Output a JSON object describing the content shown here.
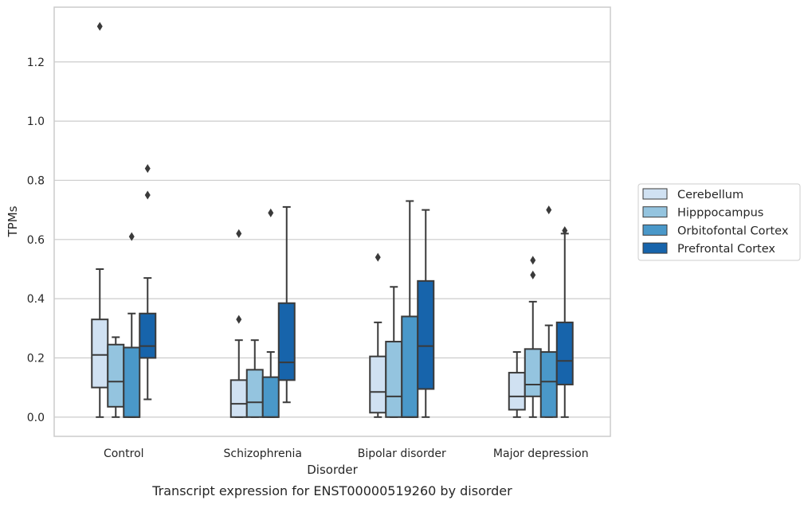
{
  "chart_data": {
    "type": "boxplot",
    "caption": "Transcript expression for ENST00000519260 by disorder",
    "xlabel": "Disorder",
    "ylabel": "TPMs",
    "ylim": [
      -0.065,
      1.385
    ],
    "yticks": [
      0.0,
      0.2,
      0.4,
      0.6,
      0.8,
      1.0,
      1.2
    ],
    "ytick_labels": [
      "0.0",
      "0.2",
      "0.4",
      "0.6",
      "0.8",
      "1.0",
      "1.2"
    ],
    "grid": "horizontal",
    "legend_position": "right",
    "categories": [
      "Control",
      "Schizophrenia",
      "Bipolar disorder",
      "Major depression"
    ],
    "series": [
      {
        "name": "Cerebellum",
        "color": "#d0e1f2",
        "boxes": [
          {
            "whislo": 0.0,
            "q1": 0.1,
            "med": 0.21,
            "q3": 0.33,
            "whishi": 0.5,
            "fliers": [
              1.32
            ]
          },
          {
            "whislo": 0.0,
            "q1": 0.0,
            "med": 0.045,
            "q3": 0.125,
            "whishi": 0.26,
            "fliers": [
              0.33,
              0.62
            ]
          },
          {
            "whislo": 0.0,
            "q1": 0.015,
            "med": 0.085,
            "q3": 0.205,
            "whishi": 0.32,
            "fliers": [
              0.54
            ]
          },
          {
            "whislo": 0.0,
            "q1": 0.025,
            "med": 0.07,
            "q3": 0.15,
            "whishi": 0.22,
            "fliers": []
          }
        ]
      },
      {
        "name": "Hipppocampus",
        "color": "#94c4df",
        "boxes": [
          {
            "whislo": 0.0,
            "q1": 0.035,
            "med": 0.12,
            "q3": 0.245,
            "whishi": 0.27,
            "fliers": []
          },
          {
            "whislo": 0.0,
            "q1": 0.0,
            "med": 0.05,
            "q3": 0.16,
            "whishi": 0.26,
            "fliers": []
          },
          {
            "whislo": 0.0,
            "q1": 0.0,
            "med": 0.07,
            "q3": 0.255,
            "whishi": 0.44,
            "fliers": []
          },
          {
            "whislo": 0.0,
            "q1": 0.07,
            "med": 0.11,
            "q3": 0.23,
            "whishi": 0.39,
            "fliers": [
              0.48,
              0.53
            ]
          }
        ]
      },
      {
        "name": "Orbitofontal Cortex",
        "color": "#4a98c9",
        "boxes": [
          {
            "whislo": 0.0,
            "q1": 0.0,
            "med": 0.0,
            "q3": 0.235,
            "whishi": 0.35,
            "fliers": [
              0.61
            ]
          },
          {
            "whislo": 0.0,
            "q1": 0.0,
            "med": 0.0,
            "q3": 0.135,
            "whishi": 0.22,
            "fliers": [
              0.69
            ]
          },
          {
            "whislo": 0.0,
            "q1": 0.0,
            "med": 0.0,
            "q3": 0.34,
            "whishi": 0.73,
            "fliers": []
          },
          {
            "whislo": 0.0,
            "q1": 0.0,
            "med": 0.12,
            "q3": 0.22,
            "whishi": 0.31,
            "fliers": [
              0.7
            ]
          }
        ]
      },
      {
        "name": "Prefrontal Cortex",
        "color": "#1764ab",
        "boxes": [
          {
            "whislo": 0.06,
            "q1": 0.2,
            "med": 0.24,
            "q3": 0.35,
            "whishi": 0.47,
            "fliers": [
              0.75,
              0.84
            ]
          },
          {
            "whislo": 0.05,
            "q1": 0.125,
            "med": 0.185,
            "q3": 0.385,
            "whishi": 0.71,
            "fliers": []
          },
          {
            "whislo": 0.0,
            "q1": 0.095,
            "med": 0.24,
            "q3": 0.46,
            "whishi": 0.7,
            "fliers": []
          },
          {
            "whislo": 0.0,
            "q1": 0.11,
            "med": 0.19,
            "q3": 0.32,
            "whishi": 0.62,
            "fliers": [
              0.63
            ]
          }
        ]
      }
    ]
  }
}
